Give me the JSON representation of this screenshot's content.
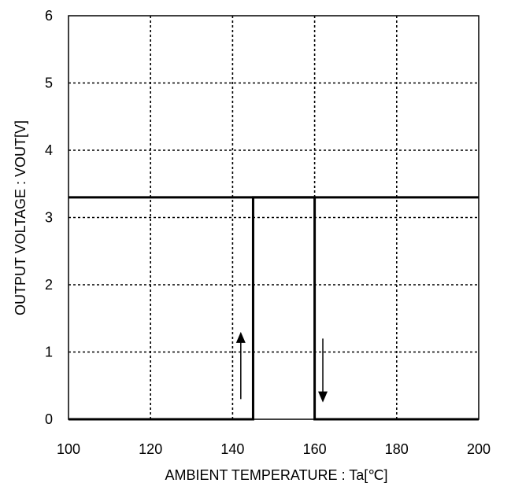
{
  "chart_data": {
    "type": "line",
    "xlabel": "AMBIENT TEMPERATURE : Ta[℃]",
    "ylabel": "OUTPUT VOLTAGE : VOUT[V]",
    "xlim": [
      100,
      200
    ],
    "ylim": [
      0,
      6
    ],
    "x_ticks": [
      100,
      120,
      140,
      160,
      180,
      200
    ],
    "y_ticks": [
      0,
      1,
      2,
      3,
      4,
      5,
      6
    ],
    "grid": true,
    "series": [
      {
        "x": [
          100,
          160,
          160,
          200
        ],
        "y": [
          3.3,
          3.3,
          0,
          0
        ]
      },
      {
        "x": [
          100,
          145,
          145,
          200
        ],
        "y": [
          0,
          0,
          3.3,
          3.3
        ]
      }
    ],
    "annotations": [
      {
        "type": "arrow",
        "direction": "up",
        "x": 142,
        "y_from": 0.3,
        "y_to": 1.3
      },
      {
        "type": "arrow",
        "direction": "down",
        "x": 162,
        "y_from": 1.2,
        "y_to": 0.25
      }
    ]
  }
}
